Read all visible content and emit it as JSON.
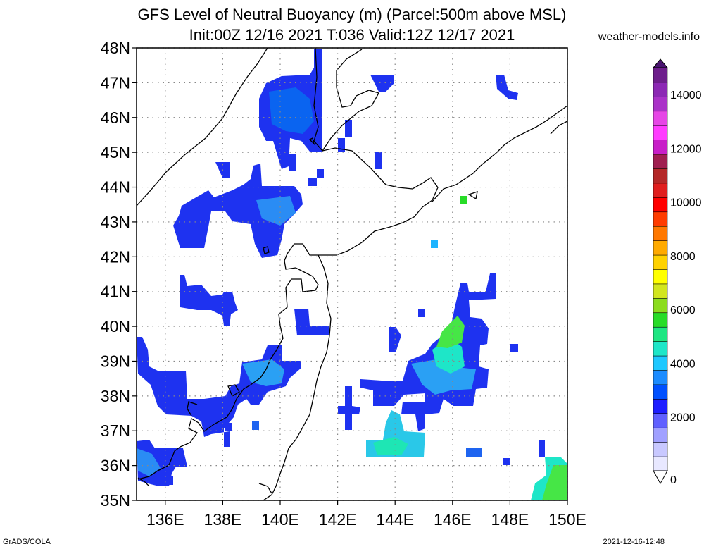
{
  "title_line1": "GFS Level of Neutral Buoyancy (m) (Parcel:500m above MSL)",
  "title_line2": "Init:00Z 12/16 2021 T:036 Valid:12Z 12/17 2021",
  "brand": "weather-models.info",
  "footer_left": "GrADS/COLA",
  "footer_right": "2021-12-16-12:48",
  "map": {
    "lon_range": [
      135,
      150
    ],
    "lat_range": [
      35,
      48
    ],
    "lat_labels": [
      "35N",
      "36N",
      "37N",
      "38N",
      "39N",
      "40N",
      "41N",
      "42N",
      "43N",
      "44N",
      "45N",
      "46N",
      "47N",
      "48N"
    ],
    "lon_labels": [
      "136E",
      "138E",
      "140E",
      "142E",
      "144E",
      "146E",
      "148E",
      "150E"
    ],
    "lat_values": [
      35,
      36,
      37,
      38,
      39,
      40,
      41,
      42,
      43,
      44,
      45,
      46,
      47,
      48
    ],
    "lon_values": [
      136,
      138,
      140,
      142,
      144,
      146,
      148,
      150
    ],
    "grid": "dotted",
    "colorbar": {
      "ticks": [
        "0",
        "2000",
        "4000",
        "6000",
        "8000",
        "10000",
        "12000",
        "14000"
      ],
      "tick_values": [
        0,
        2000,
        4000,
        6000,
        8000,
        10000,
        12000,
        14000
      ],
      "max": 15000,
      "colors": [
        "#e8e8ff",
        "#c8c8ff",
        "#a0a0ff",
        "#6060ff",
        "#1e1eff",
        "#0050ff",
        "#1c8cff",
        "#1ec8ff",
        "#1ee6c8",
        "#1ee682",
        "#28dc28",
        "#8cdc1e",
        "#d2e61e",
        "#ffff00",
        "#ffd200",
        "#ffaa00",
        "#ff7800",
        "#ff3c00",
        "#ff0000",
        "#e01e1e",
        "#b42828",
        "#a01e50",
        "#c81ec8",
        "#ff3cff",
        "#e646e6",
        "#aa32c8",
        "#8c28b4",
        "#6e1e8c"
      ]
    },
    "field_levels": [
      {
        "lon": 140.5,
        "lat": 46.5,
        "value": 2100
      },
      {
        "lon": 140.0,
        "lat": 43.6,
        "value": 2200
      },
      {
        "lon": 138.0,
        "lat": 41.0,
        "value": 2100
      },
      {
        "lon": 139.8,
        "lat": 38.9,
        "value": 2600
      },
      {
        "lon": 136.7,
        "lat": 37.9,
        "value": 2000
      },
      {
        "lon": 144.0,
        "lat": 36.5,
        "value": 3500
      },
      {
        "lon": 145.8,
        "lat": 38.8,
        "value": 3000
      },
      {
        "lon": 146.1,
        "lat": 39.9,
        "value": 4600
      },
      {
        "lon": 146.3,
        "lat": 43.7,
        "value": 4800
      },
      {
        "lon": 145.3,
        "lat": 42.4,
        "value": 3000
      },
      {
        "lon": 149.5,
        "lat": 35.6,
        "value": 4500
      },
      {
        "lon": 135.5,
        "lat": 36.3,
        "value": 2400
      }
    ]
  }
}
